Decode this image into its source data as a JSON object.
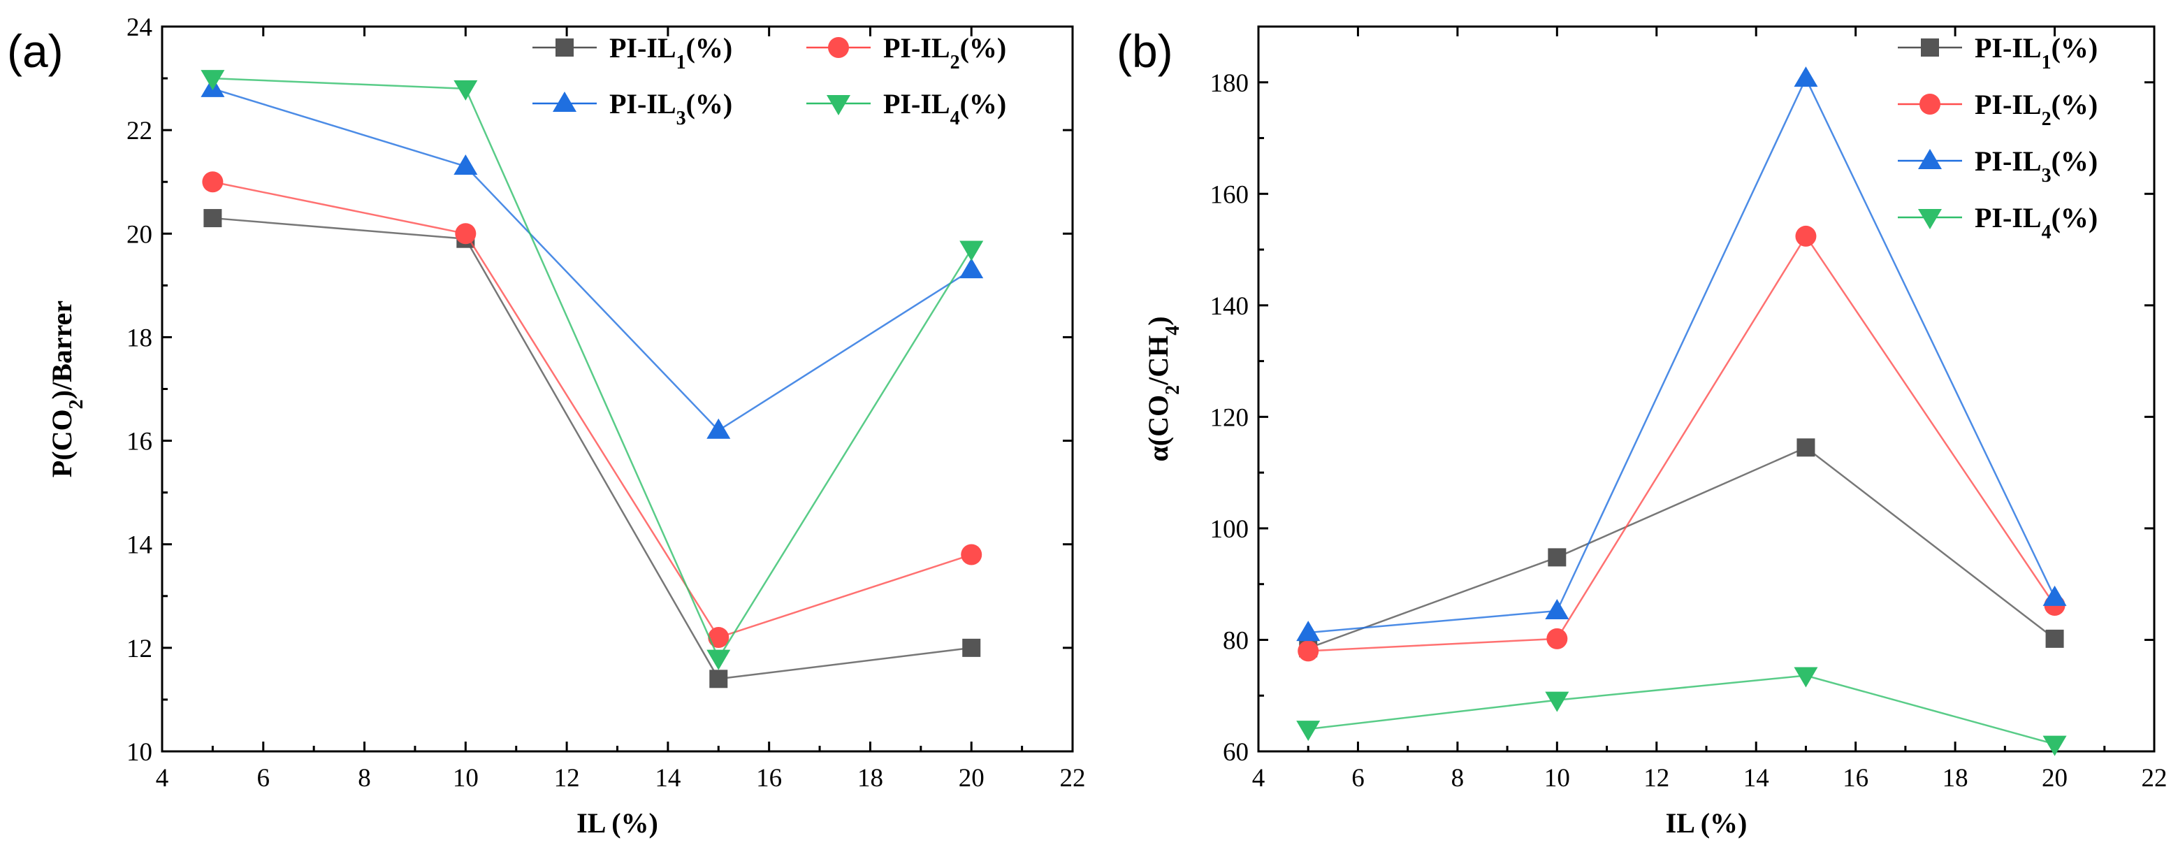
{
  "figure": {
    "panels": [
      "(a)",
      "(b)"
    ]
  },
  "chart_data": [
    {
      "type": "line",
      "panel_label": "(a)",
      "xlabel": "IL (%)",
      "ylabel": "P(CO₂)/Barrer",
      "xlim": [
        4,
        22
      ],
      "ylim": [
        10,
        24
      ],
      "xticks": [
        "4",
        "6",
        "8",
        "10",
        "12",
        "14",
        "16",
        "18",
        "20",
        "22"
      ],
      "yticks": [
        "10",
        "12",
        "14",
        "16",
        "18",
        "20",
        "22",
        "24"
      ],
      "grid": false,
      "legend_position": "top-right",
      "legend_columns": 2,
      "x": [
        5,
        10,
        15,
        20
      ],
      "series": [
        {
          "name": "PI-IL₁(%)",
          "color": "#555555",
          "marker": "square",
          "values": [
            20.3,
            19.9,
            11.4,
            12.0
          ]
        },
        {
          "name": "PI-IL₂(%)",
          "color": "#ff4d4d",
          "marker": "circle",
          "values": [
            21.0,
            20.0,
            12.2,
            13.8
          ]
        },
        {
          "name": "PI-IL₃(%)",
          "color": "#1f6fe0",
          "marker": "triangle-up",
          "values": [
            22.8,
            21.3,
            16.2,
            19.3
          ]
        },
        {
          "name": "PI-IL₄(%)",
          "color": "#2fbf6a",
          "marker": "triangle-down",
          "values": [
            23.0,
            22.8,
            11.8,
            19.7
          ]
        }
      ]
    },
    {
      "type": "line",
      "panel_label": "(b)",
      "xlabel": "IL (%)",
      "ylabel": "α(CO₂/CH₄)",
      "xlim": [
        4,
        22
      ],
      "ylim": [
        60,
        190
      ],
      "xticks": [
        "4",
        "6",
        "8",
        "10",
        "12",
        "14",
        "16",
        "18",
        "20",
        "22"
      ],
      "yticks": [
        "60",
        "80",
        "100",
        "120",
        "140",
        "160",
        "180"
      ],
      "grid": false,
      "legend_position": "top-right",
      "legend_columns": 1,
      "x": [
        5,
        10,
        15,
        20
      ],
      "series": [
        {
          "name": "PI-IL₁(%)",
          "color": "#555555",
          "marker": "square",
          "values": [
            78.5,
            94.8,
            114.5,
            80.2
          ]
        },
        {
          "name": "PI-IL₂(%)",
          "color": "#ff4d4d",
          "marker": "circle",
          "values": [
            78.0,
            80.2,
            152.4,
            86.2
          ]
        },
        {
          "name": "PI-IL₃(%)",
          "color": "#1f6fe0",
          "marker": "triangle-up",
          "values": [
            81.3,
            85.2,
            180.7,
            87.6
          ]
        },
        {
          "name": "PI-IL₄(%)",
          "color": "#2fbf6a",
          "marker": "triangle-down",
          "values": [
            64.0,
            69.2,
            73.6,
            61.3
          ]
        }
      ]
    }
  ]
}
